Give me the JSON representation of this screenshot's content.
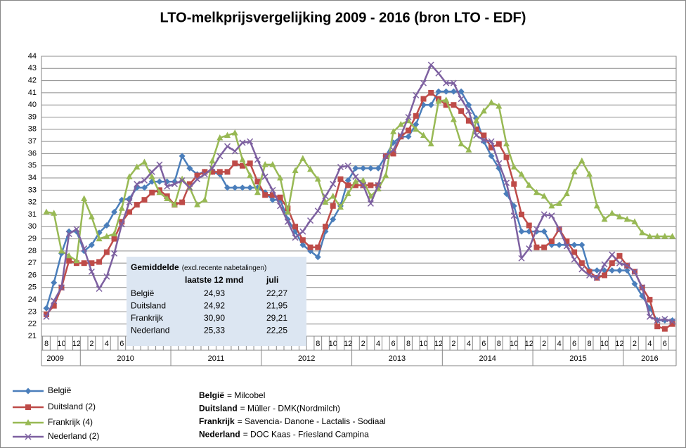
{
  "chart_data": {
    "type": "line",
    "title": "LTO-melkprijsvergelijking 2009 - 2016 (bron LTO - EDF)",
    "categories": [
      "8",
      null,
      "10",
      null,
      "12",
      null,
      "2",
      null,
      "4",
      null,
      "6",
      null,
      "8",
      null,
      "10",
      null,
      "12",
      null,
      "2",
      null,
      "4",
      null,
      "6",
      null,
      "8",
      null,
      "10",
      null,
      "12",
      null,
      "2",
      null,
      "4",
      null,
      "6",
      null,
      "8",
      null,
      "10",
      null,
      "12",
      null,
      "2",
      null,
      "4",
      null,
      "6",
      null,
      "8",
      null,
      "10",
      null,
      "12",
      null,
      "2",
      null,
      "4",
      null,
      "6",
      null,
      "8",
      null,
      "10",
      null,
      "12",
      null,
      "2",
      null,
      "4",
      null,
      "6",
      null,
      "8",
      null,
      "10",
      null,
      "12",
      null,
      "2",
      null,
      "4",
      null,
      "6",
      null
    ],
    "year_groups": [
      {
        "label": "2009",
        "months": 5
      },
      {
        "label": "2010",
        "months": 12
      },
      {
        "label": "2011",
        "months": 12
      },
      {
        "label": "2012",
        "months": 12
      },
      {
        "label": "2013",
        "months": 12
      },
      {
        "label": "2014",
        "months": 12
      },
      {
        "label": "2015",
        "months": 12
      },
      {
        "label": "2016",
        "months": 7
      }
    ],
    "ylim": [
      21,
      44
    ],
    "yticks": [
      21,
      22,
      23,
      24,
      25,
      26,
      27,
      28,
      29,
      30,
      31,
      32,
      33,
      34,
      35,
      36,
      37,
      38,
      39,
      40,
      41,
      42,
      43,
      44
    ],
    "grid": true,
    "series": [
      {
        "name": "België",
        "color": "#4a7ebb",
        "marker": "diamond",
        "values": [
          23.3,
          25.4,
          27.8,
          29.6,
          29.6,
          28.0,
          28.5,
          29.5,
          30.1,
          31.2,
          32.2,
          32.3,
          33.2,
          33.2,
          33.7,
          33.7,
          33.7,
          33.7,
          35.8,
          34.8,
          34.3,
          34.5,
          34.5,
          34.3,
          33.2,
          33.2,
          33.2,
          33.2,
          33.2,
          32.8,
          32.2,
          32.2,
          30.6,
          29.6,
          28.5,
          28.0,
          27.5,
          29.6,
          30.6,
          31.7,
          33.8,
          34.8,
          34.8,
          34.8,
          34.8,
          35.8,
          36.9,
          37.4,
          37.4,
          38.4,
          40.0,
          40.0,
          41.1,
          41.1,
          41.1,
          41.1,
          40.0,
          38.9,
          37.0,
          35.8,
          34.8,
          32.7,
          31.7,
          29.6,
          29.6,
          29.6,
          29.6,
          28.5,
          28.5,
          28.5,
          28.5,
          28.5,
          26.4,
          26.4,
          26.4,
          26.4,
          26.4,
          26.4,
          25.3,
          24.3,
          23.3,
          22.3,
          22.3,
          22.3
        ]
      },
      {
        "name": "Duitsland (2)",
        "color": "#be4b48",
        "marker": "square",
        "values": [
          22.8,
          23.5,
          25.0,
          27.2,
          27.0,
          27.0,
          27.0,
          27.1,
          27.9,
          29.0,
          30.4,
          31.2,
          31.8,
          32.2,
          32.8,
          33.0,
          32.5,
          31.8,
          32.0,
          33.5,
          34.2,
          34.5,
          34.5,
          34.5,
          34.5,
          35.2,
          35.0,
          35.2,
          33.7,
          32.6,
          32.6,
          32.4,
          31.5,
          30.0,
          28.9,
          28.3,
          28.3,
          30.0,
          31.7,
          33.9,
          33.4,
          33.4,
          33.4,
          33.4,
          33.4,
          35.8,
          36.0,
          37.4,
          37.9,
          39.1,
          40.5,
          41.0,
          40.5,
          40.0,
          40.0,
          39.5,
          38.7,
          38.0,
          37.5,
          36.5,
          36.8,
          35.7,
          33.5,
          31.0,
          30.1,
          28.3,
          28.3,
          28.8,
          29.8,
          28.8,
          27.9,
          27.0,
          26.3,
          25.8,
          26.0,
          27.0,
          27.6,
          26.8,
          26.3,
          25.0,
          24.0,
          21.8,
          21.6,
          22.0
        ]
      },
      {
        "name": "Frankrijk (4)",
        "color": "#98b954",
        "marker": "triangle",
        "values": [
          31.2,
          31.1,
          28.0,
          27.6,
          27.2,
          32.3,
          30.8,
          29.0,
          29.2,
          29.4,
          31.5,
          34.1,
          34.9,
          35.3,
          34.1,
          32.8,
          32.3,
          31.8,
          33.9,
          33.2,
          31.8,
          32.2,
          35.4,
          37.3,
          37.5,
          37.7,
          35.5,
          34.2,
          32.8,
          35.1,
          35.1,
          34.0,
          31.2,
          34.6,
          35.6,
          34.7,
          33.9,
          32.0,
          32.5,
          31.6,
          32.7,
          33.7,
          33.8,
          32.5,
          33.1,
          34.2,
          37.8,
          38.4,
          38.7,
          38.0,
          37.5,
          36.8,
          40.3,
          40.4,
          38.8,
          36.8,
          36.3,
          38.7,
          39.5,
          40.2,
          39.9,
          36.8,
          34.9,
          34.3,
          33.4,
          32.8,
          32.5,
          31.7,
          31.9,
          32.7,
          34.5,
          35.4,
          34.3,
          31.7,
          30.6,
          31.1,
          30.8,
          30.6,
          30.4,
          29.5,
          29.2,
          29.2,
          29.2,
          29.2
        ]
      },
      {
        "name": "Nederland (2)",
        "color": "#7d60a0",
        "marker": "x",
        "values": [
          22.6,
          23.9,
          25.0,
          29.4,
          29.8,
          28.2,
          26.3,
          24.9,
          25.9,
          27.8,
          30.2,
          32.0,
          33.5,
          33.8,
          34.5,
          35.1,
          33.3,
          33.5,
          33.8,
          33.2,
          33.9,
          34.3,
          34.8,
          35.8,
          36.6,
          36.2,
          36.9,
          37.0,
          35.5,
          34.1,
          33.0,
          31.7,
          30.4,
          29.1,
          29.6,
          30.5,
          31.3,
          32.5,
          33.5,
          34.9,
          35.0,
          34.1,
          33.4,
          31.9,
          33.4,
          35.8,
          36.3,
          37.5,
          39.0,
          40.8,
          41.8,
          43.3,
          42.6,
          41.8,
          41.8,
          40.5,
          39.5,
          37.5,
          37.1,
          37.0,
          35.2,
          33.6,
          30.9,
          27.4,
          28.2,
          29.8,
          31.0,
          30.9,
          29.8,
          28.4,
          27.3,
          26.5,
          26.0,
          25.8,
          26.9,
          27.7,
          27.0,
          26.8,
          26.3,
          25.0,
          22.6,
          22.3,
          22.4,
          22.2
        ]
      }
    ],
    "table": {
      "title": "Gemiddelde",
      "note": "(excl.recente nabetalingen)",
      "headers": [
        "laatste 12 mnd",
        "juli"
      ],
      "rows": [
        [
          "België",
          "24,93",
          "22,27"
        ],
        [
          "Duitsland",
          "24,92",
          "21,95"
        ],
        [
          "Frankrijk",
          "30,90",
          "29,21"
        ],
        [
          "Nederland",
          "25,33",
          "22,25"
        ]
      ]
    },
    "annotations": [
      {
        "name": "België",
        "text": "= Milcobel"
      },
      {
        "name": "Duitsland",
        "text": "= Müller -  DMK(Nordmilch)"
      },
      {
        "name": "Frankrijk",
        "text": "= Savencia- Danone - Lactalis - Sodiaal"
      },
      {
        "name": "Nederland",
        "text": "= DOC Kaas - Friesland Campina"
      }
    ]
  }
}
